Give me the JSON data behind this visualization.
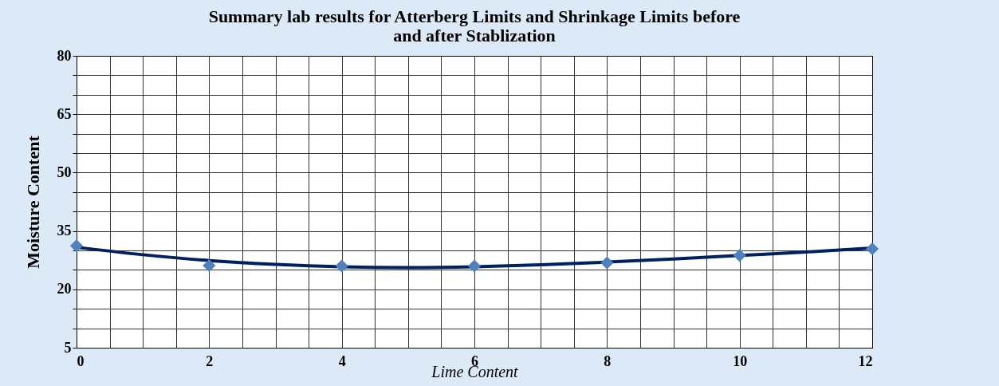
{
  "chart_data": {
    "type": "scatter",
    "title": [
      "Summary  lab results for Atterberg Limits and Shrinkage Limits before",
      "and after Stablization"
    ],
    "xlabel": "Lime Content",
    "ylabel": "Moisture Content",
    "xlim": [
      0,
      12
    ],
    "xticks": [
      0,
      2,
      4,
      6,
      8,
      10,
      12
    ],
    "ylim": [
      5,
      80
    ],
    "yticks": [
      5,
      20,
      35,
      50,
      65,
      80
    ],
    "grid": true,
    "series": [
      {
        "type": "line",
        "color": "#002060",
        "marker": "none",
        "line_style": "solid",
        "x": [
          0,
          1,
          2,
          3,
          4,
          5,
          6,
          7,
          8,
          9,
          10,
          11,
          12
        ],
        "values": [
          30.8,
          28.9,
          27.4,
          26.4,
          25.8,
          25.6,
          25.8,
          26.3,
          27.0,
          27.8,
          28.7,
          29.6,
          30.6
        ]
      },
      {
        "color": "#4f81bd",
        "marker": "diamond",
        "x": [
          0,
          2,
          4,
          6,
          8,
          10,
          12
        ],
        "values": [
          31.2,
          26.1,
          26.0,
          26.0,
          26.8,
          28.7,
          30.4
        ]
      }
    ]
  }
}
